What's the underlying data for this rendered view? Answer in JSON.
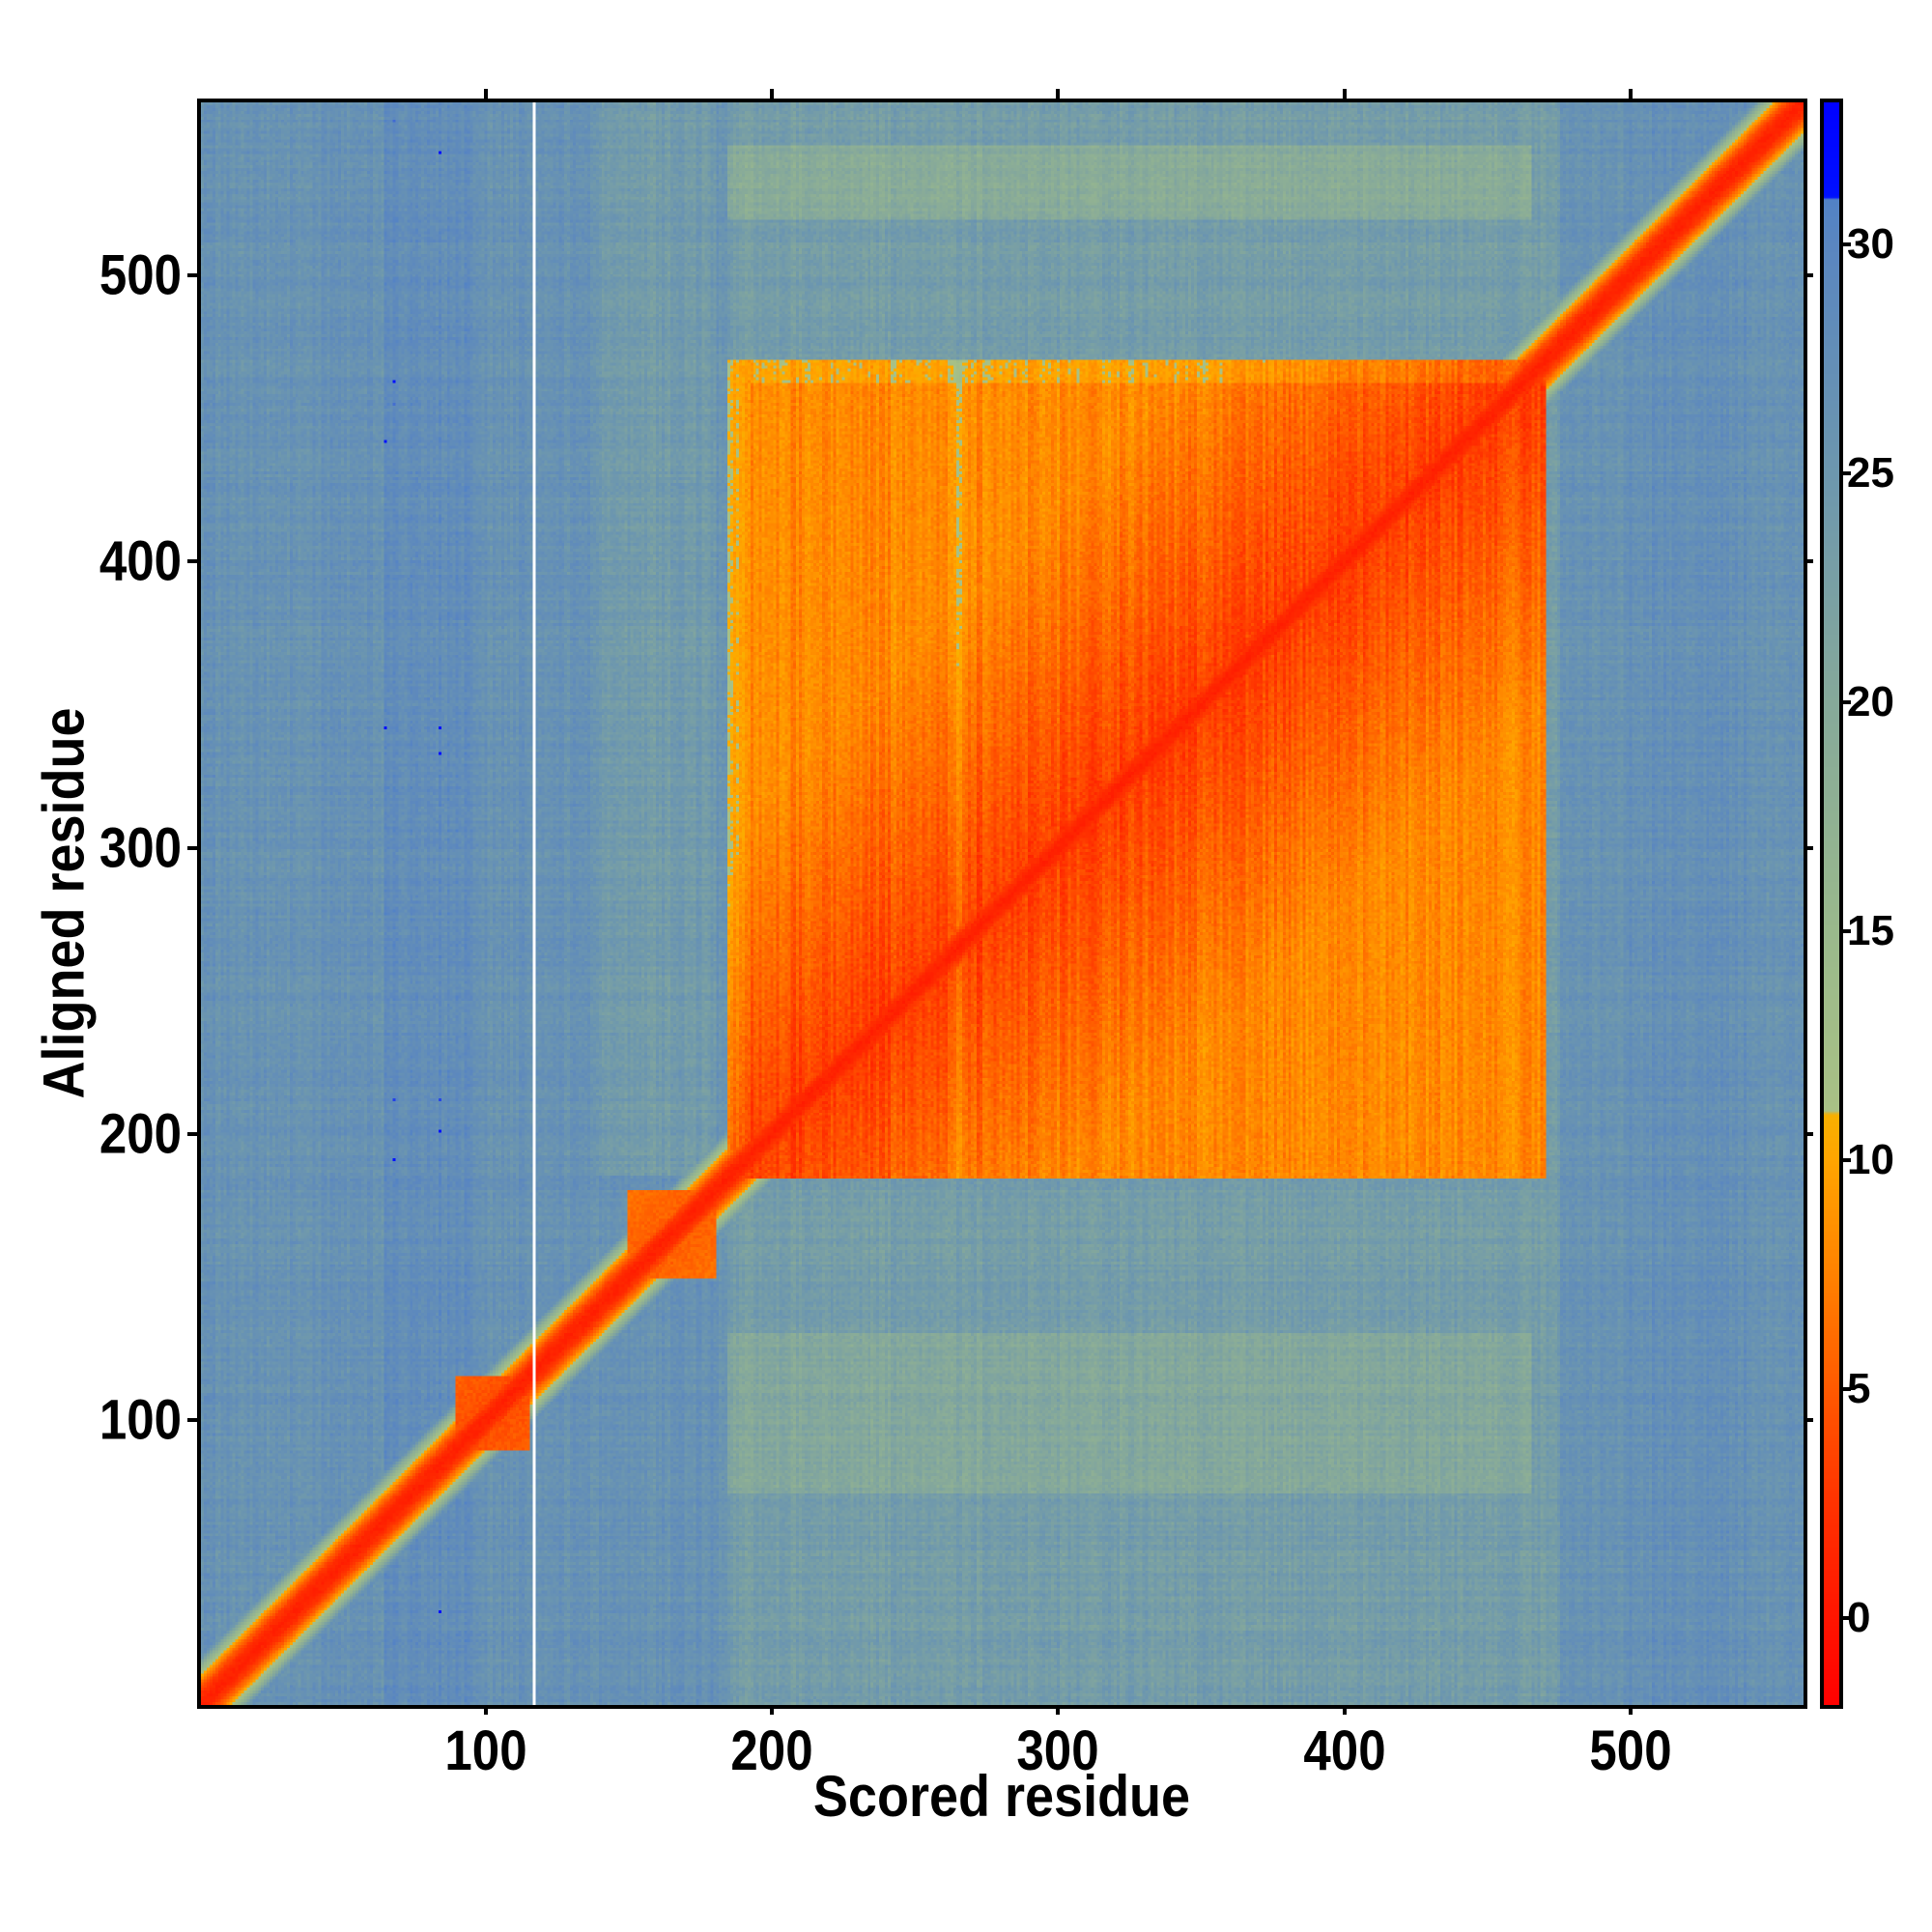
{
  "chart_data": {
    "type": "heatmap",
    "title": "",
    "xlabel": "Scored residue",
    "ylabel": "Aligned residue",
    "xlim": [
      0.5,
      560.5
    ],
    "ylim": [
      0.5,
      560.5
    ],
    "xticks": [
      100,
      200,
      300,
      400,
      500
    ],
    "yticks": [
      100,
      200,
      300,
      400,
      500
    ],
    "n_residues": 560,
    "colorbar": {
      "range": [
        -1.9,
        33.1
      ],
      "ticks": [
        0,
        5,
        10,
        15,
        20,
        25,
        30
      ],
      "stops": [
        [
          -2,
          "#ff0000"
        ],
        [
          0,
          "#ff1500"
        ],
        [
          2.5,
          "#ff3300"
        ],
        [
          5,
          "#ff5a00"
        ],
        [
          7.5,
          "#ff8200"
        ],
        [
          10,
          "#ffa500"
        ],
        [
          11,
          "#f8b000"
        ],
        [
          11.05,
          "#a9c185"
        ],
        [
          15,
          "#9ab98c"
        ],
        [
          20,
          "#86a99a"
        ],
        [
          25,
          "#6d97ae"
        ],
        [
          30,
          "#5a86c0"
        ],
        [
          31,
          "#5282c6"
        ],
        [
          31.05,
          "#0010ff"
        ],
        [
          33.2,
          "#0000ff"
        ]
      ]
    },
    "regions": {
      "background_pae": 26.5,
      "main_domain": {
        "start": 185,
        "end": 470,
        "pae": 6
      },
      "small_domains": [
        {
          "start": 90,
          "end": 115,
          "pae": 4
        },
        {
          "start": 150,
          "end": 180,
          "pae": 5
        }
      ],
      "diagonal_pae": 1,
      "missing_column": 117
    }
  }
}
